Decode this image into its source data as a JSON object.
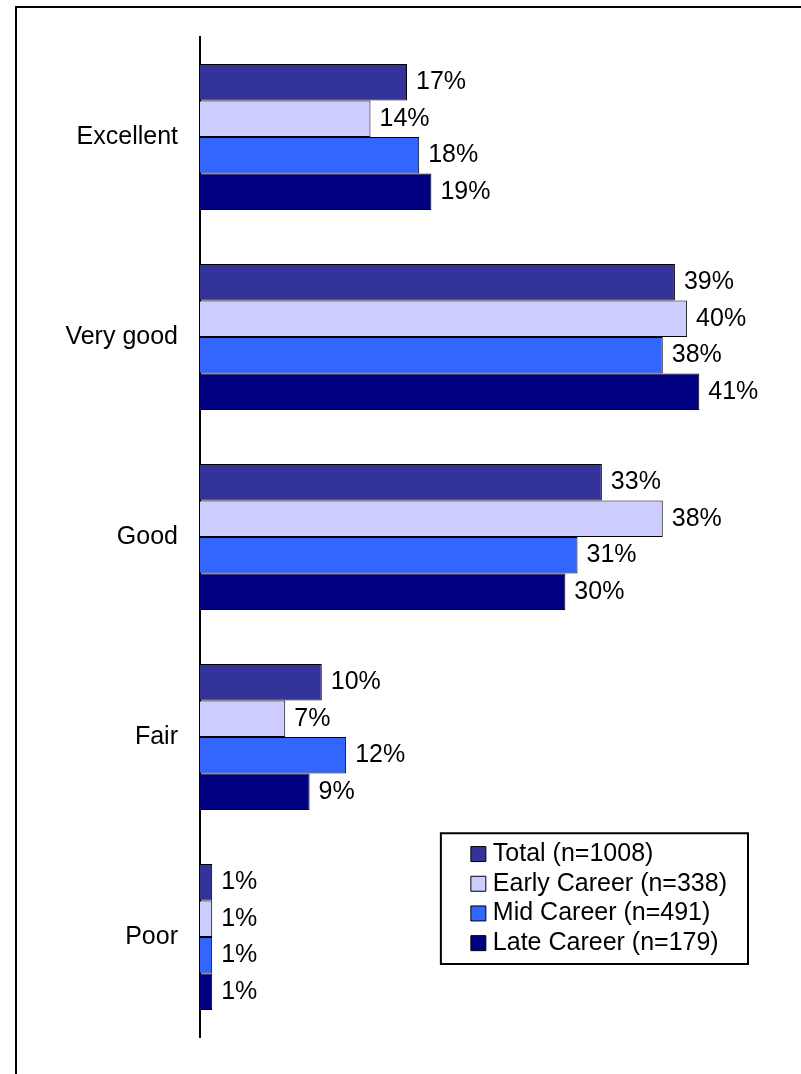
{
  "chart_data": {
    "type": "bar",
    "orientation": "horizontal",
    "tick_labels": "y",
    "legend": "bottom right",
    "categories": [
      "Excellent",
      "Very good",
      "Good",
      "Fair",
      "Poor"
    ],
    "series": [
      {
        "name": "Total (n=1008)",
        "color": "#333399",
        "values": [
          17,
          39,
          33,
          10,
          1
        ],
        "value_labels": [
          "17%",
          "39%",
          "33%",
          "10%",
          "1%"
        ]
      },
      {
        "name": "Early Career (n=338)",
        "color": "#ccccff",
        "values": [
          14,
          40,
          38,
          7,
          1
        ],
        "value_labels": [
          "14%",
          "40%",
          "38%",
          "7%",
          "1%"
        ]
      },
      {
        "name": "Mid Career (n=491)",
        "color": "#3366ff",
        "values": [
          18,
          38,
          31,
          12,
          1
        ],
        "value_labels": [
          "18%",
          "38%",
          "31%",
          "12%",
          "1%"
        ]
      },
      {
        "name": "Late Career (n=179)",
        "color": "#000080",
        "values": [
          19,
          41,
          30,
          9,
          1
        ],
        "value_labels": [
          "19%",
          "41%",
          "30%",
          "9%",
          "1%"
        ]
      }
    ]
  }
}
